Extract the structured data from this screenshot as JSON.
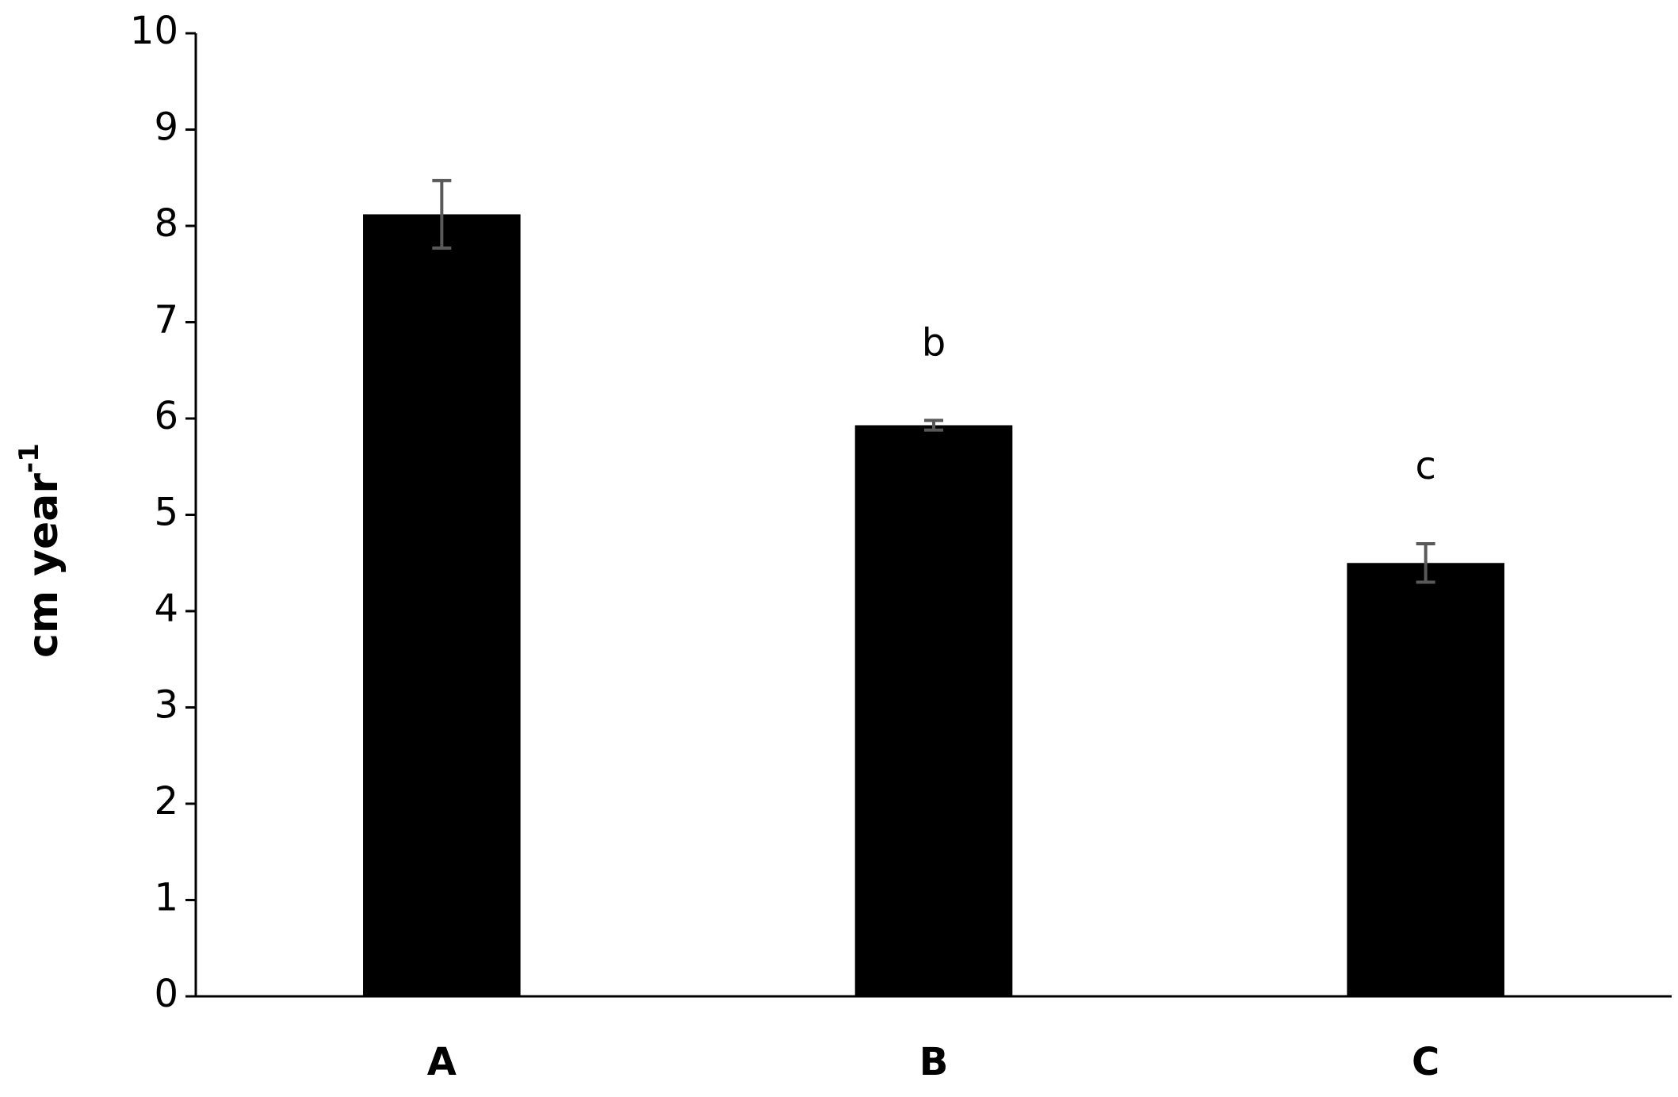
{
  "chart_data": {
    "type": "bar",
    "y_label": "cm year",
    "y_label_superscript": "-1",
    "categories": [
      "A",
      "B",
      "C"
    ],
    "values": [
      8.12,
      5.93,
      4.5
    ],
    "errors": [
      0.35,
      0.05,
      0.2
    ],
    "letters": [
      null,
      "b",
      "c"
    ],
    "color": "#000000",
    "error_color": "#595959",
    "ylim": [
      0,
      10
    ],
    "yticks": [
      0,
      1,
      2,
      3,
      4,
      5,
      6,
      7,
      8,
      9,
      10
    ],
    "grid": false
  }
}
